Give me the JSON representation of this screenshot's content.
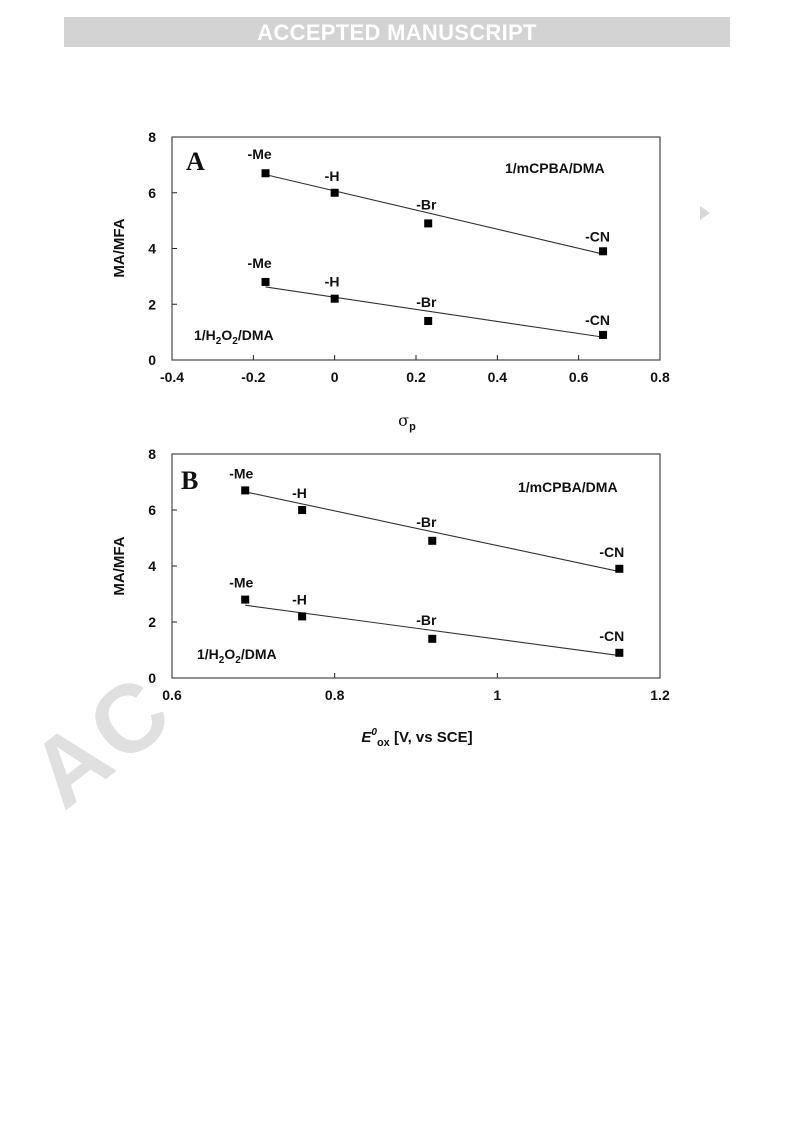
{
  "header": {
    "banner_text": "ACCEPTED MANUSCRIPT"
  },
  "watermark": {
    "text": "AC"
  },
  "chart_data": [
    {
      "type": "scatter",
      "panel": "A",
      "xlabel": "σp",
      "ylabel": "MA/MFA",
      "xlim": [
        -0.4,
        0.8
      ],
      "ylim": [
        0,
        8
      ],
      "xticks": [
        -0.4,
        -0.2,
        0,
        0.2,
        0.4,
        0.6,
        0.8
      ],
      "yticks": [
        0,
        2,
        4,
        6,
        8
      ],
      "xtick_labels": [
        "-0.4",
        "-0.2",
        "0",
        "0.2",
        "0.4",
        "0.6",
        "0.8"
      ],
      "ytick_labels": [
        "0",
        "2",
        "4",
        "6",
        "8"
      ],
      "grid": false,
      "series": [
        {
          "name": "1/mCPBA/DMA",
          "points": [
            {
              "label": "-Me",
              "x": -0.17,
              "y": 6.7
            },
            {
              "label": "-H",
              "x": 0.0,
              "y": 6.0
            },
            {
              "label": "-Br",
              "x": 0.23,
              "y": 4.9
            },
            {
              "label": "-CN",
              "x": 0.66,
              "y": 3.9
            }
          ],
          "fit": [
            [
              -0.17,
              6.65
            ],
            [
              0.66,
              3.8
            ]
          ]
        },
        {
          "name": "1/H2O2/DMA",
          "points": [
            {
              "label": "-Me",
              "x": -0.17,
              "y": 2.8
            },
            {
              "label": "-H",
              "x": 0.0,
              "y": 2.2
            },
            {
              "label": "-Br",
              "x": 0.23,
              "y": 1.4
            },
            {
              "label": "-CN",
              "x": 0.66,
              "y": 0.9
            }
          ],
          "fit": [
            [
              -0.17,
              2.62
            ],
            [
              0.66,
              0.82
            ]
          ]
        }
      ]
    },
    {
      "type": "scatter",
      "panel": "B",
      "xlabel": "E0ox [V, vs SCE]",
      "ylabel": "MA/MFA",
      "xlim": [
        0.6,
        1.2
      ],
      "ylim": [
        0,
        8
      ],
      "xticks": [
        0.6,
        0.8,
        1.0,
        1.2
      ],
      "yticks": [
        0,
        2,
        4,
        6,
        8
      ],
      "xtick_labels": [
        "0.6",
        "0.8",
        "1",
        "1.2"
      ],
      "ytick_labels": [
        "0",
        "2",
        "4",
        "6",
        "8"
      ],
      "grid": false,
      "series": [
        {
          "name": "1/mCPBA/DMA",
          "points": [
            {
              "label": "-Me",
              "x": 0.69,
              "y": 6.7
            },
            {
              "label": "-H",
              "x": 0.76,
              "y": 6.0
            },
            {
              "label": "-Br",
              "x": 0.92,
              "y": 4.9
            },
            {
              "label": "-CN",
              "x": 1.15,
              "y": 3.9
            }
          ],
          "fit": [
            [
              0.69,
              6.65
            ],
            [
              1.15,
              3.8
            ]
          ]
        },
        {
          "name": "1/H2O2/DMA",
          "points": [
            {
              "label": "-Me",
              "x": 0.69,
              "y": 2.8
            },
            {
              "label": "-H",
              "x": 0.76,
              "y": 2.2
            },
            {
              "label": "-Br",
              "x": 0.92,
              "y": 1.4
            },
            {
              "label": "-CN",
              "x": 1.15,
              "y": 0.9
            }
          ],
          "fit": [
            [
              0.69,
              2.6
            ],
            [
              1.15,
              0.8
            ]
          ]
        }
      ]
    }
  ]
}
